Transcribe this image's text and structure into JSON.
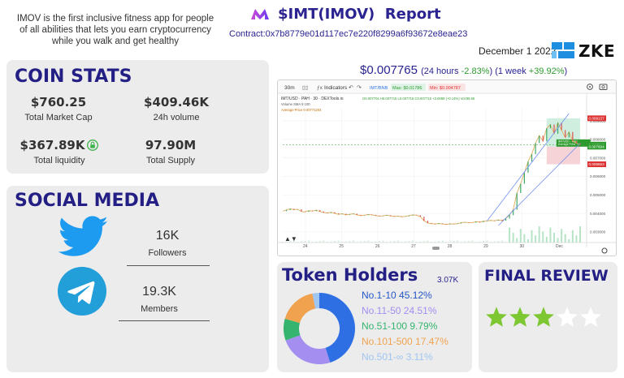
{
  "intro": {
    "line1": "IMOV is the first inclusive fitness app for people",
    "line2": "of all abilities that lets you earn cryptocurrency",
    "line3": "while you walk and get healthy"
  },
  "header": {
    "title": "$IMT(IMOV)  Report",
    "contract": "Contract:0x7b8779e01d117ec7e220f8299a6f93672e8eae23",
    "date": "December 1 2022",
    "brand": "ZKE"
  },
  "coin_stats": {
    "heading": "COIN STATS",
    "market_cap_value": "$760.25",
    "market_cap_label": "Total Market Cap",
    "volume_value": "$409.46K",
    "volume_label": "24h volume",
    "liquidity_value": "$367.89K",
    "liquidity_label": "Total liquidity",
    "supply_value": "97.90M",
    "supply_label": "Total Supply"
  },
  "social": {
    "heading": "SOCIAL MEDIA",
    "twitter_count": "16K",
    "twitter_label": "Followers",
    "telegram_count": "19.3K",
    "telegram_label": "Members"
  },
  "price": {
    "value": "$0.007765",
    "day_prefix": "(24 hours ",
    "day_change": "-2.83%",
    "week_prefix": ") (1 week ",
    "week_change": "+39.92%",
    "suffix": ")"
  },
  "toolbar": {
    "interval": "30m",
    "indicators": "Indicators",
    "pair": "IMT/BNB",
    "max": "Max: $0.01786",
    "min": "Min: $0.004787"
  },
  "chart_header": {
    "title": "IMT/USD · PAH · 30 · DEXTools.io",
    "ohlc": "O0.007704  H0.007715  L0.007715  C0.007715 +0.0099 (+0.14%)  Vol:99.55",
    "volume_sma": "Volume SMA 9  100",
    "avg_price": "Average Price  0.00771204"
  },
  "chart_data": {
    "type": "line",
    "title": "IMT/USD · PAH · 30 · DEXTools.io",
    "xlabel": "",
    "ylabel": "",
    "x_ticks": [
      "24",
      "25",
      "26",
      "27",
      "28",
      "29",
      "30",
      "Dec"
    ],
    "y_ticks": [
      "0.009000",
      "0.008000",
      "0.007000",
      "0.006000",
      "0.005000",
      "0.004000",
      "0.003000"
    ],
    "price_labels": [
      "0.009137",
      "0.007715",
      "0.007604",
      "0.006653"
    ],
    "position_box_labels": [
      "IMT/USD · PAH",
      "Average Price"
    ],
    "series": [
      {
        "values": [
          0.00412,
          0.00418,
          0.00425,
          0.0042,
          0.00422,
          0.0041,
          0.00408,
          0.00415,
          0.00412,
          0.00418,
          0.0041,
          0.00405,
          0.00402,
          0.00406,
          0.004,
          0.00395,
          0.00398,
          0.00392,
          0.00395,
          0.00398,
          0.00392,
          0.00388,
          0.0039,
          0.00394,
          0.00392,
          0.00388,
          0.00385,
          0.00387,
          0.0039,
          0.00386,
          0.00383,
          0.00385,
          0.00382,
          0.00384,
          0.00388,
          0.00392,
          0.0039,
          0.00382,
          0.0036,
          0.00348,
          0.00345,
          0.00342,
          0.00346,
          0.00343,
          0.0034,
          0.00344,
          0.00342,
          0.00345,
          0.0035,
          0.00352,
          0.0035,
          0.0035,
          0.00356,
          0.00352,
          0.00358,
          0.0036,
          0.00362,
          0.0036,
          0.00365,
          0.0036,
          0.00372,
          0.0039,
          0.0042,
          0.0051,
          0.0056,
          0.0062,
          0.0068,
          0.0072,
          0.0078,
          0.0082,
          0.0079,
          0.0086,
          0.0088,
          0.0083,
          0.0089,
          0.0085,
          0.0081,
          0.0084,
          0.0079,
          0.0078,
          0.0077
        ]
      }
    ],
    "ylim": [
      0.0026,
      0.0097
    ],
    "grid": true
  },
  "holders": {
    "heading": "Token Holders",
    "total": "3.07K",
    "chart_data": {
      "type": "pie",
      "categories": [
        "No.1-10",
        "No.11-50",
        "No.51-100",
        "No.101-500",
        "No.501-∞"
      ],
      "values": [
        45.12,
        24.51,
        9.79,
        17.47,
        3.11
      ],
      "labels": [
        "No.1-10  45.12%",
        "No.11-50 24.51%",
        "No.51-100 9.79%",
        "No.101-500 17.47%",
        "No.501-∞ 3.11%"
      ],
      "colors": [
        "#2f6fe4",
        "#a48ef0",
        "#34b46e",
        "#f0a24e",
        "#9fc5f0"
      ]
    }
  },
  "review": {
    "heading": "FINAL REVIEW",
    "rating": 3,
    "max_rating": 5,
    "star_color": "#7dc832"
  }
}
